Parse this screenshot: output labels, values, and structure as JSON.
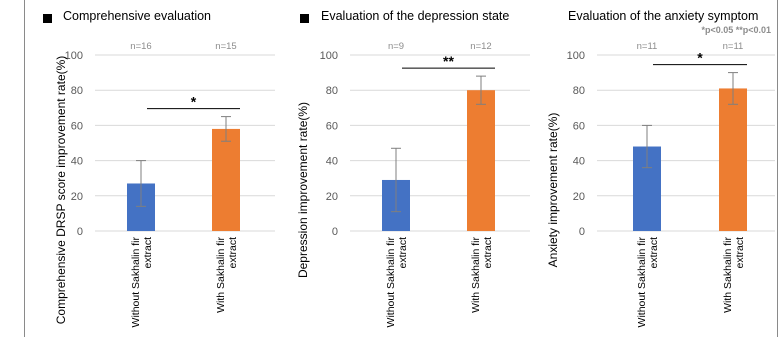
{
  "significance_note": "*p<0.05 **p<0.01",
  "chart_data": [
    {
      "type": "bar",
      "title": "Comprehensive evaluation",
      "ylabel": "Comprehensive DRSP score improvement rate(%)",
      "xlabel": "",
      "categories": [
        "Without Sakhalin fir extract",
        "With Sakhalin fir extract"
      ],
      "values": [
        27,
        58
      ],
      "error": [
        13,
        7
      ],
      "n_labels": [
        "n=16",
        "n=15"
      ],
      "ylim": [
        0,
        100
      ],
      "yticks": [
        0,
        20,
        40,
        60,
        80,
        100
      ],
      "significance": "*",
      "colors": [
        "#4472C4",
        "#ED7D31"
      ],
      "bullet": true
    },
    {
      "type": "bar",
      "title": "Evaluation of the depression state",
      "ylabel": "Depression improvement rate(%)",
      "xlabel": "",
      "categories": [
        "Without Sakhalin fir extract",
        "With Sakhalin fir extract"
      ],
      "values": [
        29,
        80
      ],
      "error": [
        18,
        8
      ],
      "n_labels": [
        "n=9",
        "n=12"
      ],
      "ylim": [
        0,
        100
      ],
      "yticks": [
        0,
        20,
        40,
        60,
        80,
        100
      ],
      "significance": "**",
      "colors": [
        "#4472C4",
        "#ED7D31"
      ],
      "bullet": true
    },
    {
      "type": "bar",
      "title": "Evaluation of the anxiety symptom",
      "ylabel": "Anxiety improvement rate(%)",
      "xlabel": "",
      "categories": [
        "Without Sakhalin fir extract",
        "With Sakhalin fir extract"
      ],
      "values": [
        48,
        81
      ],
      "error": [
        12,
        9
      ],
      "n_labels": [
        "n=11",
        "n=11"
      ],
      "ylim": [
        0,
        100
      ],
      "yticks": [
        0,
        20,
        40,
        60,
        80,
        100
      ],
      "significance": "*",
      "colors": [
        "#4472C4",
        "#ED7D31"
      ],
      "bullet": false
    }
  ]
}
